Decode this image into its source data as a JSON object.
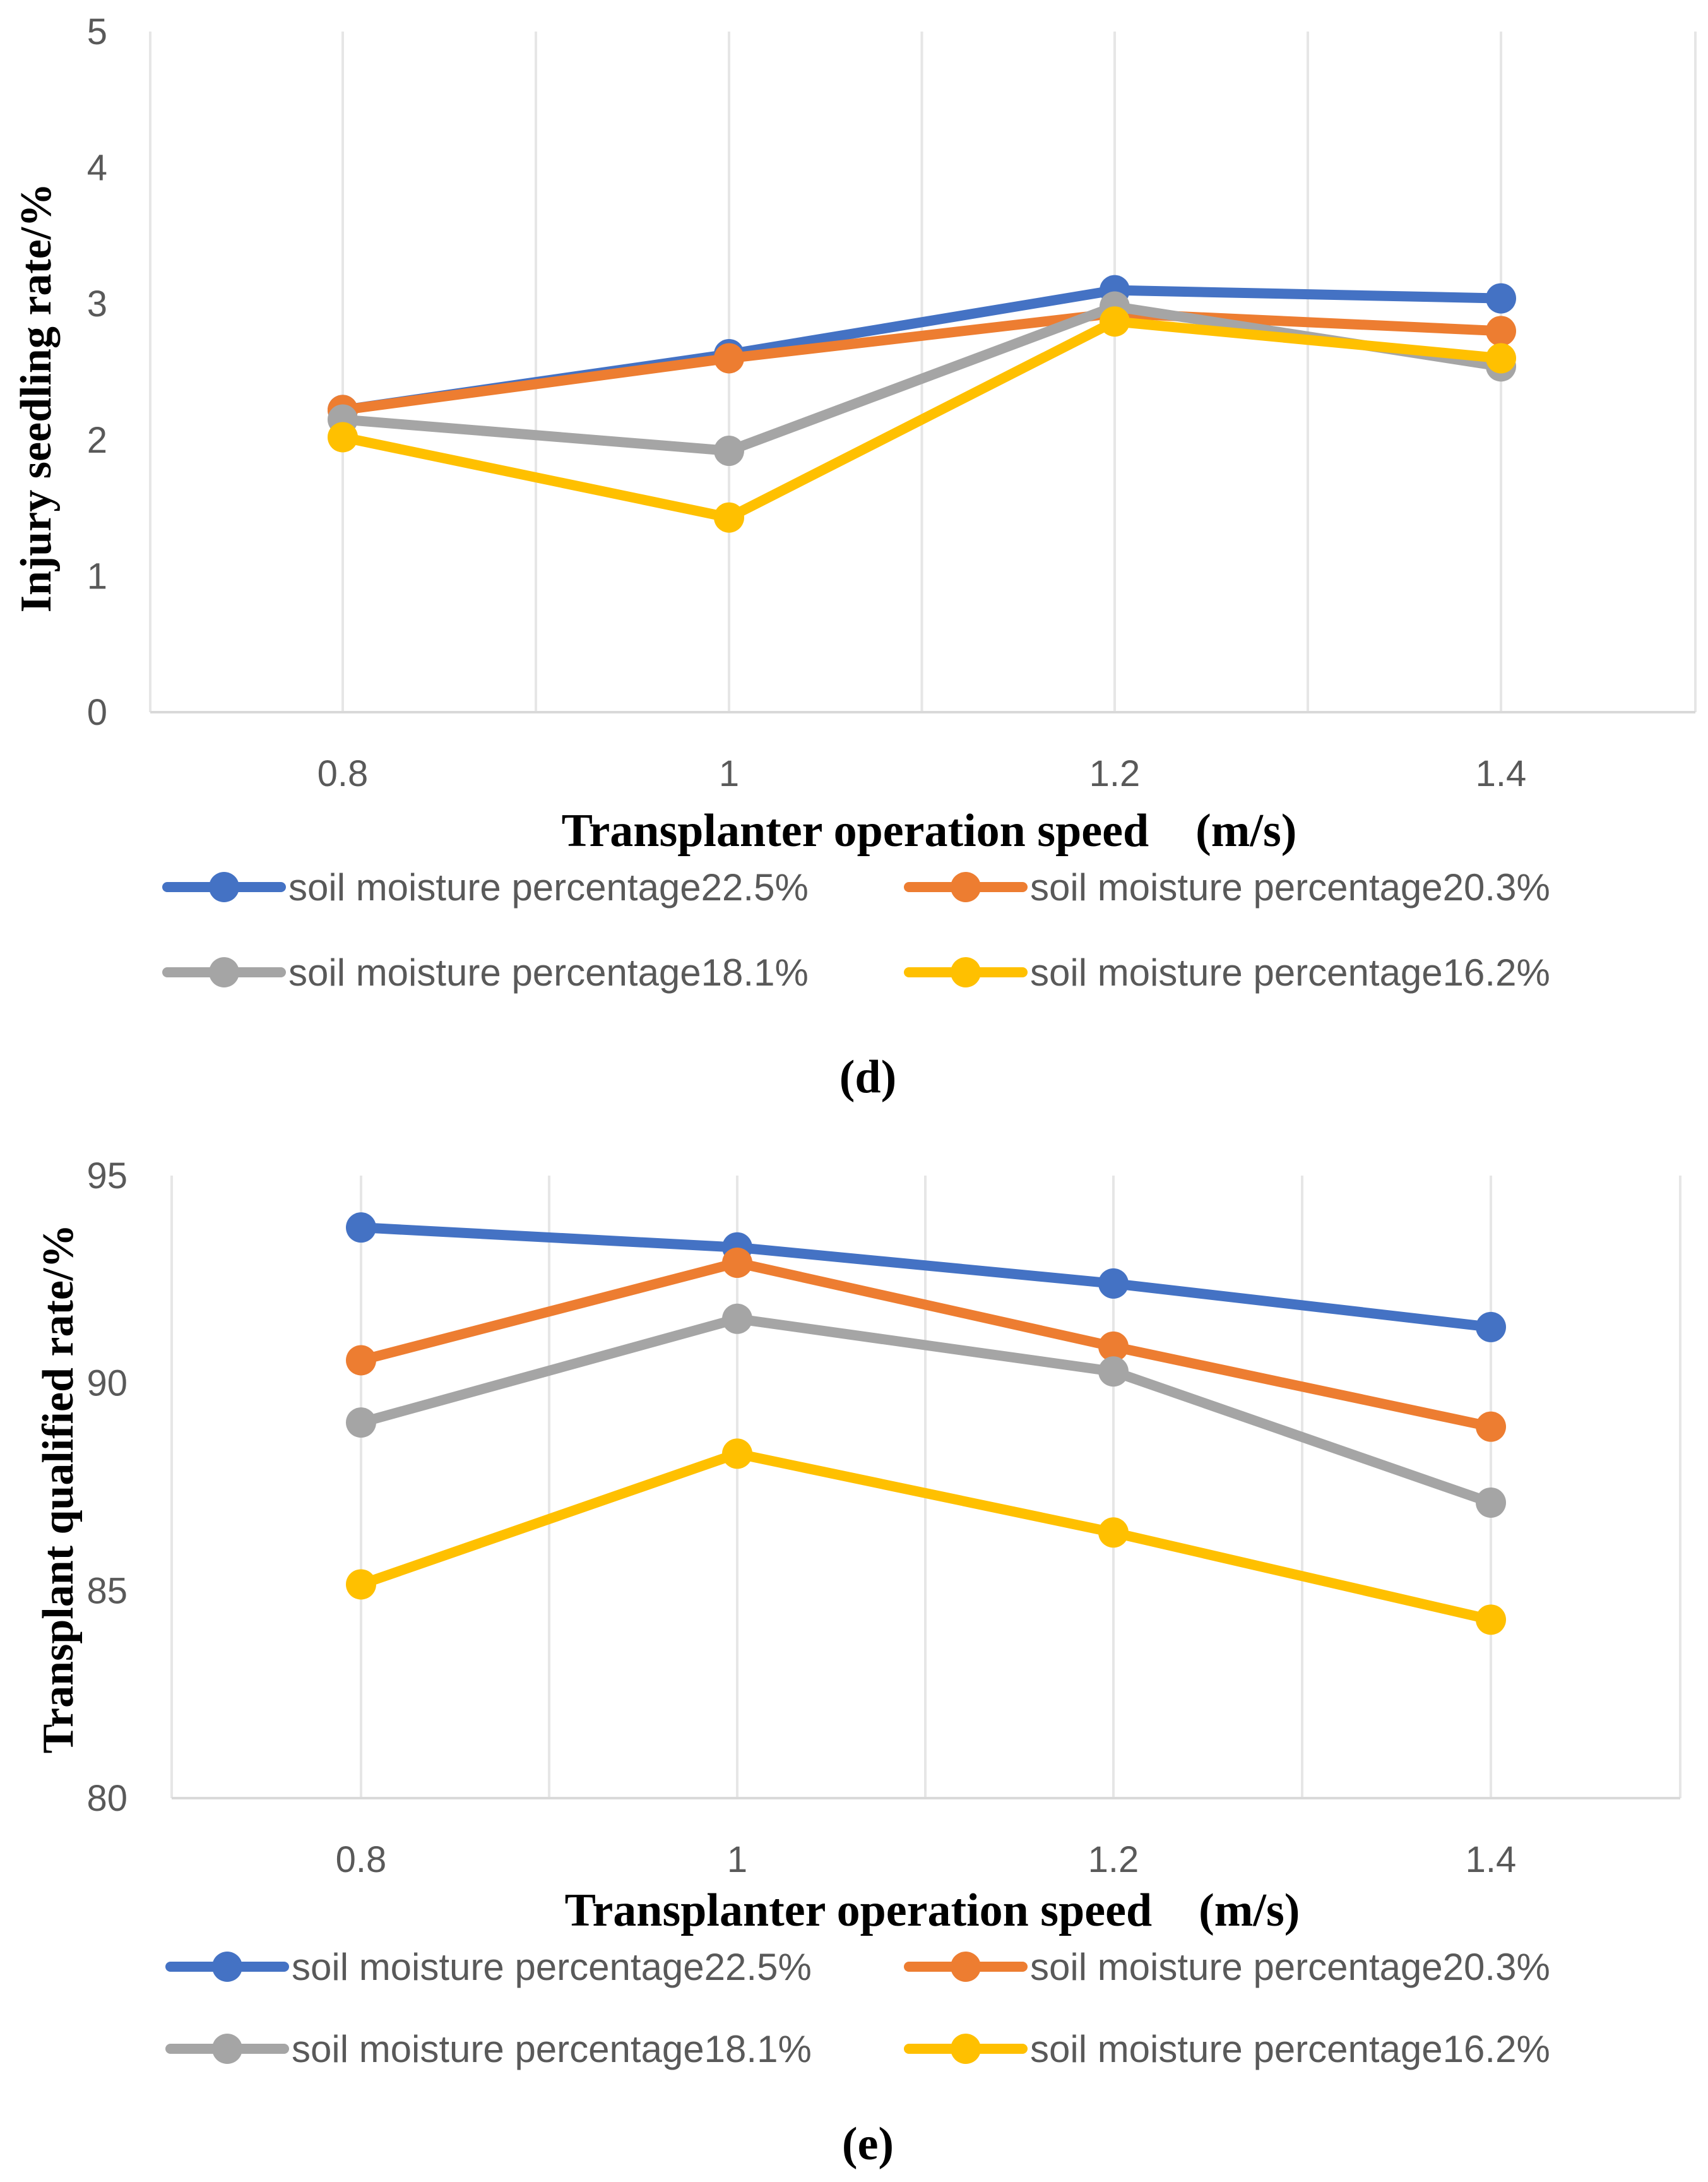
{
  "chart_data": [
    {
      "type": "line",
      "panel_label": "(d)",
      "xlabel": "Transplanter operation speed　(m/s)",
      "ylabel": "Injury seedling rate/%",
      "categories": [
        "0.8",
        "1",
        "1.2",
        "1.4"
      ],
      "yticks": [
        "0",
        "1",
        "2",
        "3",
        "4",
        "5"
      ],
      "ylim": [
        0,
        5
      ],
      "grid": true,
      "legend_position": "bottom",
      "series": [
        {
          "name": "soil moisture percentage22.5%",
          "color": "#4472C4",
          "values": [
            2.22,
            2.63,
            3.1,
            3.04
          ]
        },
        {
          "name": "soil moisture percentage20.3%",
          "color": "#ED7D31",
          "values": [
            2.22,
            2.6,
            2.93,
            2.8
          ]
        },
        {
          "name": "soil moisture percentage18.1%",
          "color": "#A5A5A5",
          "values": [
            2.15,
            1.92,
            2.98,
            2.54
          ]
        },
        {
          "name": "soil moisture percentage16.2%",
          "color": "#FFC000",
          "values": [
            2.02,
            1.43,
            2.87,
            2.6
          ]
        }
      ]
    },
    {
      "type": "line",
      "panel_label": "(e)",
      "xlabel": "Transplanter operation speed　(m/s)",
      "ylabel": "Transplant qualified rate/%",
      "categories": [
        "0.8",
        "1",
        "1.2",
        "1.4"
      ],
      "yticks": [
        "80",
        "85",
        "90",
        "95"
      ],
      "ylim": [
        80,
        95
      ],
      "grid": true,
      "legend_position": "bottom",
      "series": [
        {
          "name": "soil moisture percentage22.5%",
          "color": "#4472C4",
          "values": [
            93.75,
            93.27,
            92.4,
            91.35
          ]
        },
        {
          "name": "soil moisture percentage20.3%",
          "color": "#ED7D31",
          "values": [
            90.55,
            92.9,
            90.88,
            88.95
          ]
        },
        {
          "name": "soil moisture percentage18.1%",
          "color": "#A5A5A5",
          "values": [
            89.05,
            91.55,
            90.28,
            87.12
          ]
        },
        {
          "name": "soil moisture percentage16.2%",
          "color": "#FFC000",
          "values": [
            85.15,
            88.3,
            86.4,
            84.3
          ]
        }
      ]
    }
  ]
}
